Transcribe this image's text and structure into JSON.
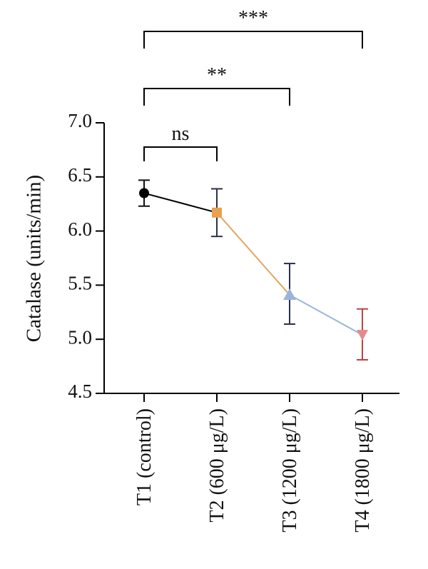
{
  "chart_data": {
    "type": "line",
    "title": "",
    "xlabel": "",
    "ylabel": "Catalase (units/min)",
    "ylim": [
      4.5,
      7.0
    ],
    "yticks": [
      "4.5",
      "5.0",
      "5.5",
      "6.0",
      "6.5",
      "7.0"
    ],
    "categories": [
      "T1 (control)",
      "T2 (600 μg/L)",
      "T3 (1200 μg/L)",
      "T4 (1800 μg/L)"
    ],
    "points": [
      {
        "mean": 6.35,
        "err_low": 6.23,
        "err_high": 6.47,
        "color": "#000000",
        "marker": "circle"
      },
      {
        "mean": 6.17,
        "err_low": 5.95,
        "err_high": 6.39,
        "color": "#E8A24D",
        "marker": "square"
      },
      {
        "mean": 5.41,
        "err_low": 5.14,
        "err_high": 5.7,
        "color": "#9BB5DA",
        "marker": "triangle-up"
      },
      {
        "mean": 5.04,
        "err_low": 4.81,
        "err_high": 5.28,
        "color": "#E58A8A",
        "marker": "triangle-down"
      }
    ],
    "errorbar_colors": [
      "#111111",
      "#2B2F4A",
      "#2B2F4A",
      "#B84545"
    ],
    "segment_colors": [
      "#000000",
      "#E0A860",
      "#9BB5DA"
    ],
    "grid": false,
    "legend": false,
    "significance": [
      {
        "from": 0,
        "to": 1,
        "label": "ns"
      },
      {
        "from": 0,
        "to": 2,
        "label": "**"
      },
      {
        "from": 0,
        "to": 3,
        "label": "***"
      }
    ]
  }
}
